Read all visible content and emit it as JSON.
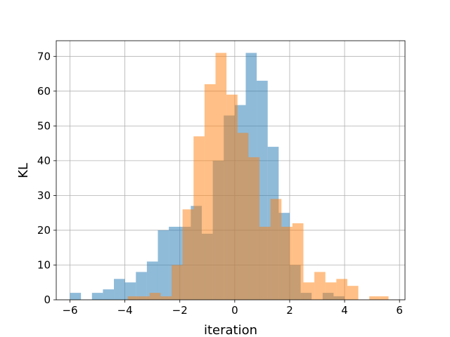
{
  "chart_data": {
    "type": "histogram",
    "title": "",
    "xlabel": "iteration",
    "ylabel": "KL",
    "xlim": [
      -6.5,
      6.2
    ],
    "ylim": [
      0,
      74.5
    ],
    "xticks": [
      -6,
      -4,
      -2,
      0,
      2,
      4,
      6
    ],
    "yticks": [
      0,
      10,
      20,
      30,
      40,
      50,
      60,
      70
    ],
    "grid": true,
    "legend": "none",
    "series": [
      {
        "color": "#1f77b4",
        "alpha": 0.5,
        "bin_edges": [
          -6.0,
          -5.6,
          -5.2,
          -4.8,
          -4.4,
          -4.0,
          -3.6,
          -3.2,
          -2.8,
          -2.4,
          -2.0,
          -1.6,
          -1.2,
          -0.8,
          -0.4,
          0.0,
          0.4,
          0.8,
          1.2,
          1.6,
          2.0,
          2.4,
          2.8,
          3.2,
          3.6,
          4.0
        ],
        "counts": [
          2,
          0,
          2,
          3,
          6,
          5,
          8,
          11,
          20,
          21,
          21,
          27,
          19,
          40,
          53,
          56,
          71,
          63,
          44,
          25,
          10,
          2,
          0,
          2,
          1
        ]
      },
      {
        "color": "#ff7f0e",
        "alpha": 0.5,
        "bin_edges": [
          -3.9,
          -3.5,
          -3.1,
          -2.7,
          -2.3,
          -1.9,
          -1.5,
          -1.1,
          -0.7,
          -0.3,
          0.1,
          0.5,
          0.9,
          1.3,
          1.7,
          2.1,
          2.5,
          2.9,
          3.3,
          3.7,
          4.1,
          4.5,
          4.9,
          5.3,
          5.6
        ],
        "counts": [
          1,
          1,
          2,
          1,
          10,
          26,
          47,
          62,
          71,
          59,
          48,
          41,
          21,
          29,
          21,
          22,
          5,
          8,
          5,
          6,
          4,
          0,
          1,
          1
        ]
      }
    ]
  }
}
